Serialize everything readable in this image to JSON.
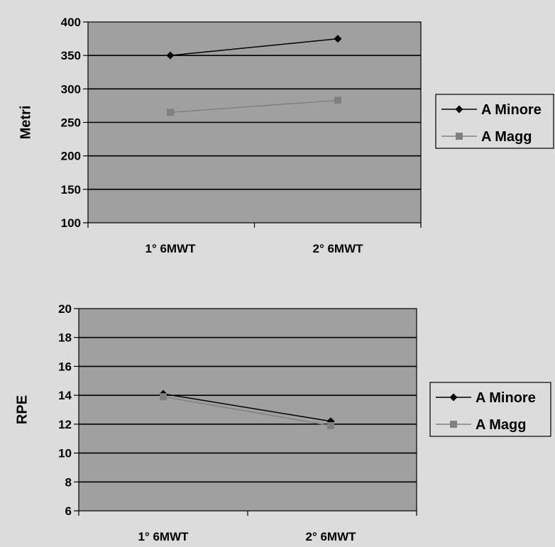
{
  "chart_data": [
    {
      "type": "line",
      "categories": [
        "1° 6MWT",
        "2° 6MWT"
      ],
      "ylabel": "Metri",
      "ylim": [
        100,
        400
      ],
      "yticks": [
        100,
        150,
        200,
        250,
        300,
        350,
        400
      ],
      "grid": true,
      "legend_placement": "right",
      "series": [
        {
          "name": "A Minore",
          "values": [
            350,
            375
          ],
          "color": "#000000",
          "marker": "diamond"
        },
        {
          "name": "A Magg",
          "values": [
            265,
            283
          ],
          "color": "#808080",
          "marker": "square"
        }
      ]
    },
    {
      "type": "line",
      "categories": [
        "1° 6MWT",
        "2° 6MWT"
      ],
      "ylabel": "RPE",
      "ylim": [
        6,
        20
      ],
      "yticks": [
        6,
        8,
        10,
        12,
        14,
        16,
        18,
        20
      ],
      "grid": true,
      "legend_placement": "right",
      "series": [
        {
          "name": "A Minore",
          "values": [
            14.1,
            12.2
          ],
          "color": "#000000",
          "marker": "diamond"
        },
        {
          "name": "A Magg",
          "values": [
            13.9,
            11.9
          ],
          "color": "#808080",
          "marker": "square"
        }
      ]
    }
  ],
  "colors": {
    "plot_background": "#a0a0a0",
    "page_background": "#dcdcdc"
  }
}
